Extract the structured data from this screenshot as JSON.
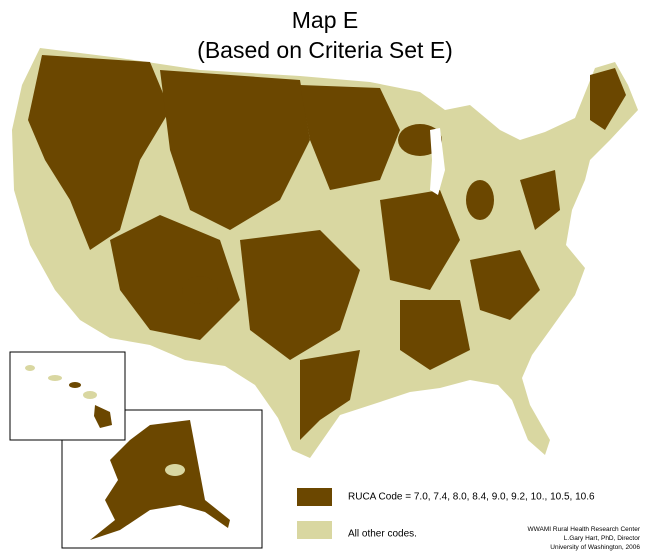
{
  "title": {
    "line1": "Map E",
    "line2": "(Based on Criteria Set E)"
  },
  "legend": [
    {
      "label": "RUCA Code = 7.0, 7.4, 8.0, 8.4, 9.0, 9.2, 10., 10.5, 10.6",
      "color": "#6b4700"
    },
    {
      "label": "All other codes.",
      "color": "#d9d7a1"
    }
  ],
  "credits": [
    "WWAMI Rural Health Research Center",
    "L.Gary Hart, PhD, Director",
    "University of Washington, 2006"
  ]
}
